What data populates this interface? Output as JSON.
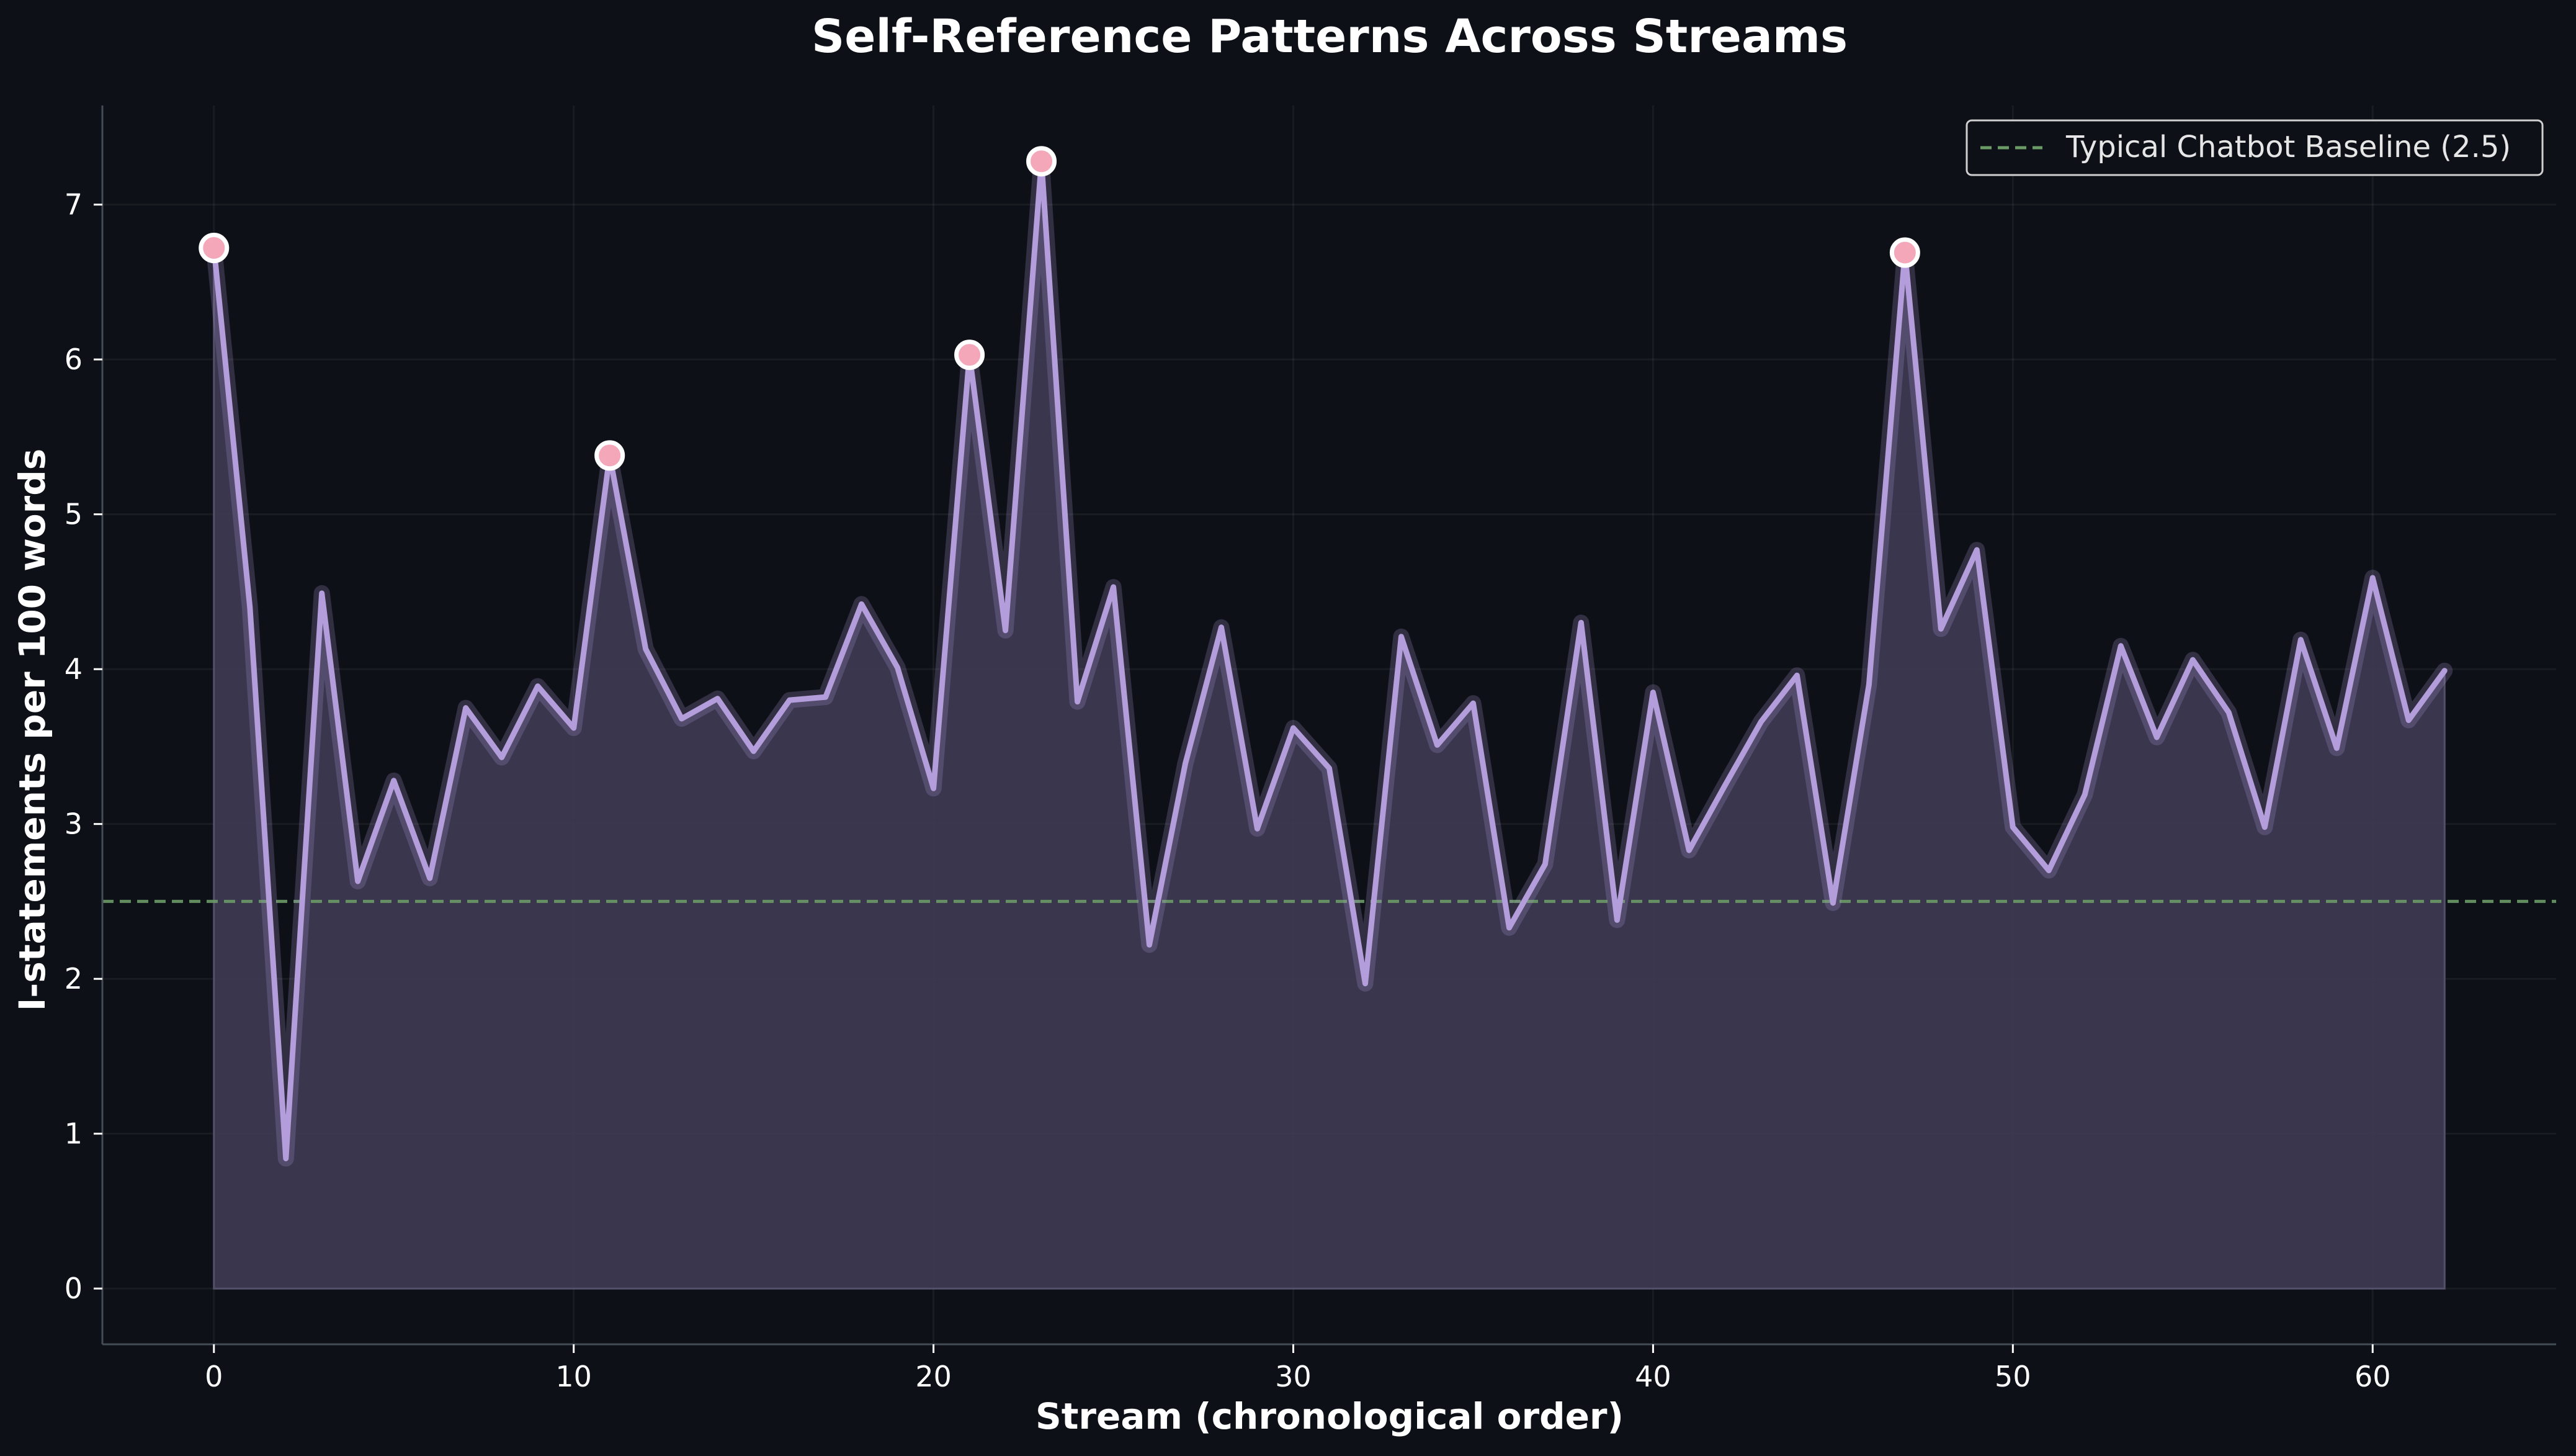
{
  "chart_data": {
    "type": "area",
    "title": "Self-Reference Patterns Across Streams",
    "xlabel": "Stream (chronological order)",
    "ylabel": "I-statements per 100 words",
    "xlim": [
      -3.1,
      65.1
    ],
    "ylim": [
      -0.36,
      7.64
    ],
    "xticks": [
      0,
      10,
      20,
      30,
      40,
      50,
      60
    ],
    "yticks": [
      0,
      1,
      2,
      3,
      4,
      5,
      6,
      7
    ],
    "grid": true,
    "legend_position": "top-right",
    "series": [
      {
        "x": [
          0,
          1,
          2,
          3,
          4,
          5,
          6,
          7,
          8,
          9,
          10,
          11,
          12,
          13,
          14,
          15,
          16,
          17,
          18,
          19,
          20,
          21,
          22,
          23,
          24,
          25,
          26,
          27,
          28,
          29,
          30,
          31,
          32,
          33,
          34,
          35,
          36,
          37,
          38,
          39,
          40,
          41,
          42,
          43,
          44,
          45,
          46,
          47,
          48,
          49,
          50,
          51,
          52,
          53,
          54,
          55,
          56,
          57,
          58,
          59,
          60,
          61,
          62
        ],
        "values": [
          6.72,
          4.4,
          0.84,
          4.49,
          2.63,
          3.28,
          2.65,
          3.75,
          3.43,
          3.89,
          3.62,
          5.38,
          4.13,
          3.68,
          3.81,
          3.47,
          3.8,
          3.82,
          4.42,
          4.01,
          3.23,
          6.03,
          4.25,
          7.28,
          3.79,
          4.53,
          2.22,
          3.39,
          4.27,
          2.97,
          3.62,
          3.36,
          1.97,
          4.21,
          3.51,
          3.78,
          2.33,
          2.74,
          4.3,
          2.38,
          3.85,
          2.83,
          3.25,
          3.66,
          3.96,
          2.49,
          3.9,
          6.69,
          4.26,
          4.77,
          2.98,
          2.7,
          3.19,
          4.15,
          3.56,
          4.06,
          3.72,
          2.98,
          4.19,
          3.49,
          4.59,
          3.67,
          3.99
        ],
        "color": "#b39ddb",
        "fill_color": "#3d3951"
      }
    ],
    "highlighted_points": [
      {
        "x": 0,
        "y": 6.72
      },
      {
        "x": 11,
        "y": 5.38
      },
      {
        "x": 21,
        "y": 6.03
      },
      {
        "x": 23,
        "y": 7.28
      },
      {
        "x": 47,
        "y": 6.69
      }
    ],
    "highlight_color": "#f4a7b9",
    "baseline": {
      "label": "Typical Chatbot Baseline (2.5)",
      "y": 2.5,
      "color": "#6a9a66"
    }
  }
}
